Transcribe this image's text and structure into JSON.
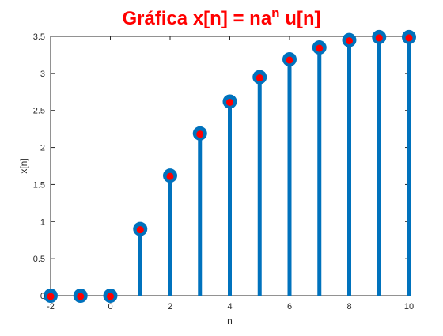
{
  "chart_data": {
    "type": "stem",
    "title": {
      "prefix": "Gráfica x[n] = na",
      "superscript": "n",
      "suffix": " u[n]"
    },
    "xlabel": "n",
    "ylabel": "x[n]",
    "xlim": [
      -2,
      10
    ],
    "ylim": [
      0,
      3.5
    ],
    "xticks": [
      "-2",
      "0",
      "2",
      "4",
      "6",
      "8",
      "10"
    ],
    "yticks": [
      "0",
      "0.5",
      "1",
      "1.5",
      "2",
      "2.5",
      "3",
      "3.5"
    ],
    "grid": false,
    "series": [
      {
        "x": [
          -2,
          -1,
          0,
          1,
          2,
          3,
          4,
          5,
          6,
          7,
          8,
          9,
          10
        ],
        "values": [
          0,
          0,
          0,
          0.9,
          1.62,
          2.19,
          2.62,
          2.95,
          3.19,
          3.35,
          3.45,
          3.49,
          3.49
        ]
      }
    ],
    "colors": {
      "title": "#ff0000",
      "stem": "#0072bd",
      "marker_face": "#0072bd",
      "marker_overlay": "#ff0000",
      "axes": "#262626"
    }
  }
}
